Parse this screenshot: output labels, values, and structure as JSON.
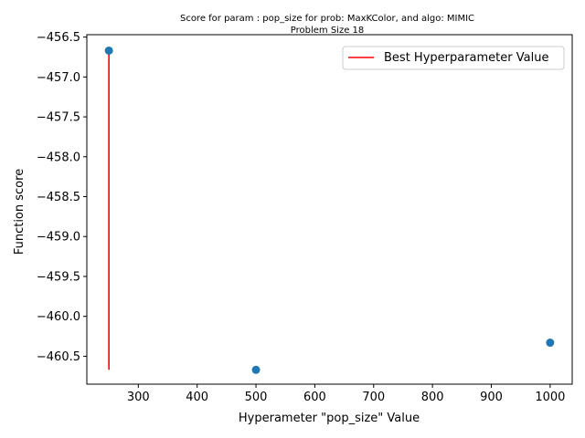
{
  "chart_data": {
    "type": "scatter",
    "title": "Score for param : pop_size for prob: MaxKColor, and algo: MIMIC",
    "subtitle": "Problem Size 18",
    "xlabel": "Hyperameter \"pop_size\" Value",
    "ylabel": "Function score",
    "xlim": [
      212.5,
      1037.5
    ],
    "ylim": [
      -460.85,
      -456.47
    ],
    "xticks": [
      300,
      400,
      500,
      600,
      700,
      800,
      900,
      1000
    ],
    "xtick_labels": [
      "300",
      "400",
      "500",
      "600",
      "700",
      "800",
      "900",
      "1000"
    ],
    "yticks": [
      -456.5,
      -457.0,
      -457.5,
      -458.0,
      -458.5,
      -459.0,
      -459.5,
      -460.0,
      -460.5
    ],
    "ytick_labels": [
      "−456.5",
      "−457.0",
      "−457.5",
      "−458.0",
      "−458.5",
      "−459.0",
      "−459.5",
      "−460.0",
      "−460.5"
    ],
    "points": [
      {
        "x": 250,
        "y": -456.67
      },
      {
        "x": 500,
        "y": -460.67
      },
      {
        "x": 1000,
        "y": -460.33
      }
    ],
    "best_line": {
      "x": 250,
      "y_from": -460.67,
      "y_to": -456.67,
      "label": "Best Hyperparameter Value"
    },
    "legend": {
      "position": "top-right"
    },
    "grid": false,
    "colors": {
      "points": "#1f77b4",
      "best_line": "#ff0000"
    }
  }
}
